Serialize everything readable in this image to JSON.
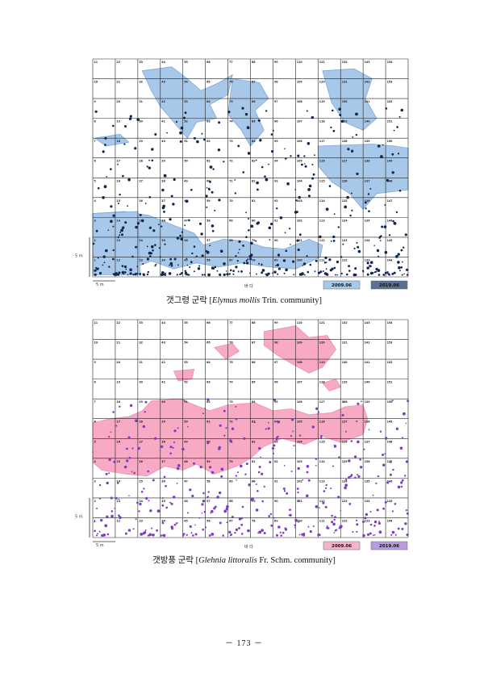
{
  "figures": [
    {
      "id": "elymus",
      "sea_label": "바 다",
      "scale_vertical": "5 m",
      "scale_horizontal": "5 m",
      "legend": [
        {
          "label": "2009.06",
          "color": "#a8c8ea"
        },
        {
          "label": "2019.06",
          "color": "#5a6f94"
        }
      ],
      "caption_prefix": "갯그령 군락 [",
      "caption_species": "Elymus mollis",
      "caption_suffix": " Trin. community]",
      "fill_color": "#a8c8ea",
      "stroke_color": "#7ea9d8",
      "dot_color": "#12264f",
      "row_ids": [
        [
          11,
          22,
          33,
          44,
          55,
          66,
          77,
          88,
          99,
          110,
          121,
          132,
          143,
          154
        ],
        [
          10,
          21,
          32,
          43,
          54,
          65,
          76,
          87,
          98,
          109,
          120,
          131,
          142,
          153
        ],
        [
          9,
          20,
          31,
          42,
          53,
          64,
          75,
          86,
          97,
          108,
          119,
          130,
          141,
          152
        ],
        [
          8,
          19,
          30,
          41,
          52,
          63,
          74,
          85,
          96,
          107,
          118,
          129,
          140,
          151
        ],
        [
          7,
          18,
          29,
          40,
          51,
          62,
          73,
          84,
          95,
          106,
          117,
          128,
          139,
          150
        ],
        [
          6,
          17,
          28,
          39,
          50,
          61,
          72,
          83,
          94,
          105,
          116,
          127,
          138,
          149
        ],
        [
          5,
          16,
          27,
          38,
          49,
          60,
          71,
          82,
          93,
          104,
          115,
          126,
          137,
          148
        ],
        [
          4,
          15,
          26,
          37,
          48,
          59,
          70,
          81,
          92,
          103,
          114,
          125,
          136,
          147
        ],
        [
          3,
          14,
          25,
          36,
          47,
          58,
          69,
          80,
          91,
          102,
          113,
          124,
          135,
          146
        ],
        [
          2,
          13,
          24,
          35,
          46,
          57,
          68,
          79,
          90,
          101,
          112,
          123,
          134,
          145
        ],
        [
          1,
          12,
          23,
          34,
          45,
          56,
          67,
          78,
          89,
          100,
          111,
          122,
          133,
          144
        ]
      ]
    },
    {
      "id": "glehnia",
      "sea_label": "바 다",
      "scale_vertical": "5 m",
      "scale_horizontal": "5 m",
      "legend": [
        {
          "label": "2009.06",
          "color": "#f7b3c8"
        },
        {
          "label": "2019.06",
          "color": "#b99be0"
        }
      ],
      "caption_prefix": "갯방풍 군락 [",
      "caption_species": "Glehnia littoralis",
      "caption_suffix": " Fr. Schm. community]",
      "fill_color": "#f8a9c4",
      "stroke_color": "#f08fb2",
      "dot_color": "#7a3fc1",
      "row_ids": [
        [
          11,
          22,
          33,
          44,
          55,
          66,
          77,
          88,
          99,
          110,
          121,
          132,
          143,
          154
        ],
        [
          10,
          21,
          32,
          43,
          54,
          65,
          76,
          87,
          98,
          109,
          120,
          131,
          142,
          153
        ],
        [
          9,
          20,
          31,
          42,
          53,
          64,
          75,
          86,
          97,
          108,
          119,
          130,
          141,
          152
        ],
        [
          8,
          19,
          30,
          41,
          52,
          63,
          74,
          85,
          96,
          107,
          118,
          129,
          140,
          151
        ],
        [
          7,
          18,
          29,
          40,
          51,
          62,
          73,
          84,
          95,
          106,
          117,
          128,
          139,
          150
        ],
        [
          6,
          17,
          28,
          39,
          50,
          61,
          72,
          83,
          94,
          105,
          116,
          127,
          138,
          149
        ],
        [
          5,
          16,
          27,
          38,
          49,
          60,
          71,
          82,
          93,
          104,
          115,
          126,
          137,
          148
        ],
        [
          4,
          15,
          26,
          37,
          48,
          59,
          70,
          81,
          92,
          103,
          114,
          125,
          136,
          147
        ],
        [
          3,
          14,
          25,
          36,
          47,
          58,
          69,
          80,
          91,
          102,
          113,
          124,
          135,
          146
        ],
        [
          2,
          13,
          24,
          35,
          46,
          57,
          68,
          79,
          90,
          101,
          112,
          123,
          134,
          145
        ],
        [
          1,
          12,
          23,
          34,
          45,
          56,
          67,
          78,
          89,
          100,
          111,
          122,
          133,
          144
        ]
      ]
    }
  ],
  "page_number": "－ 173 －"
}
